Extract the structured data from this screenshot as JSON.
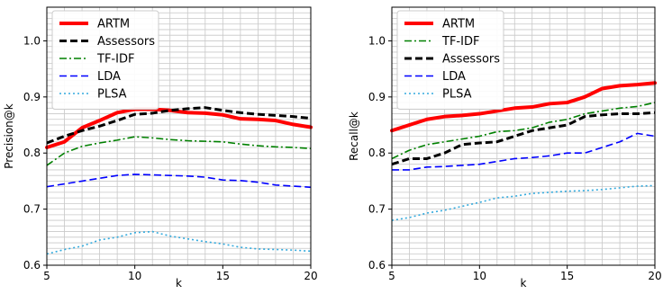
{
  "chart_data": [
    {
      "type": "line",
      "xlabel": "k",
      "ylabel": "Precision@k",
      "xlim": [
        5,
        20
      ],
      "ylim": [
        0.6,
        1.06
      ],
      "xticks": [
        5,
        10,
        15,
        20
      ],
      "yticks": [
        0.6,
        0.7,
        0.8,
        0.9,
        1.0
      ],
      "xtick_labels": [
        "5",
        "10",
        "15",
        "20"
      ],
      "ytick_labels": [
        "0.6",
        "0.7",
        "0.8",
        "0.9",
        "1.0"
      ],
      "grid": true,
      "legend_position": "top-left",
      "x": [
        5,
        6,
        7,
        8,
        9,
        10,
        11,
        12,
        13,
        14,
        15,
        16,
        17,
        18,
        19,
        20
      ],
      "series": [
        {
          "name": "ARTM",
          "color": "#ff0000",
          "style": "solid",
          "width": 4,
          "values": [
            0.81,
            0.82,
            0.845,
            0.858,
            0.872,
            0.878,
            0.878,
            0.876,
            0.872,
            0.871,
            0.868,
            0.861,
            0.86,
            0.858,
            0.851,
            0.846
          ]
        },
        {
          "name": "Assessors",
          "color": "#000000",
          "style": "dashed",
          "width": 3,
          "values": [
            0.818,
            0.83,
            0.84,
            0.848,
            0.858,
            0.869,
            0.871,
            0.876,
            0.879,
            0.881,
            0.876,
            0.872,
            0.869,
            0.867,
            0.865,
            0.862
          ]
        },
        {
          "name": "TF-IDF",
          "color": "#008000",
          "style": "dashdot",
          "width": 1.6,
          "values": [
            0.778,
            0.8,
            0.812,
            0.818,
            0.823,
            0.829,
            0.827,
            0.824,
            0.822,
            0.821,
            0.82,
            0.816,
            0.813,
            0.811,
            0.81,
            0.808
          ]
        },
        {
          "name": "LDA",
          "color": "#0000ff",
          "style": "dashed",
          "width": 1.6,
          "values": [
            0.74,
            0.745,
            0.75,
            0.755,
            0.76,
            0.762,
            0.761,
            0.76,
            0.759,
            0.757,
            0.752,
            0.751,
            0.748,
            0.743,
            0.741,
            0.739
          ]
        },
        {
          "name": "PLSA",
          "color": "#33aadd",
          "style": "dotted",
          "width": 1.6,
          "values": [
            0.62,
            0.628,
            0.634,
            0.645,
            0.65,
            0.658,
            0.66,
            0.652,
            0.647,
            0.642,
            0.638,
            0.632,
            0.629,
            0.628,
            0.627,
            0.625
          ]
        }
      ]
    },
    {
      "type": "line",
      "xlabel": "k",
      "ylabel": "Recall@k",
      "xlim": [
        5,
        20
      ],
      "ylim": [
        0.6,
        1.06
      ],
      "xticks": [
        5,
        10,
        15,
        20
      ],
      "yticks": [
        0.6,
        0.7,
        0.8,
        0.9,
        1.0
      ],
      "xtick_labels": [
        "5",
        "10",
        "15",
        "20"
      ],
      "ytick_labels": [
        "0.6",
        "0.7",
        "0.8",
        "0.9",
        "1.0"
      ],
      "grid": true,
      "legend_position": "top-left",
      "x": [
        5,
        6,
        7,
        8,
        9,
        10,
        11,
        12,
        13,
        14,
        15,
        16,
        17,
        18,
        19,
        20
      ],
      "series": [
        {
          "name": "ARTM",
          "color": "#ff0000",
          "style": "solid",
          "width": 4,
          "values": [
            0.84,
            0.85,
            0.86,
            0.865,
            0.867,
            0.87,
            0.875,
            0.88,
            0.882,
            0.888,
            0.89,
            0.9,
            0.915,
            0.92,
            0.922,
            0.925
          ]
        },
        {
          "name": "TF-IDF",
          "color": "#008000",
          "style": "dashdot",
          "width": 1.6,
          "values": [
            0.79,
            0.805,
            0.815,
            0.82,
            0.825,
            0.83,
            0.838,
            0.84,
            0.845,
            0.855,
            0.86,
            0.87,
            0.875,
            0.88,
            0.883,
            0.89
          ]
        },
        {
          "name": "Assessors",
          "color": "#000000",
          "style": "dashed",
          "width": 3,
          "values": [
            0.78,
            0.79,
            0.79,
            0.8,
            0.815,
            0.818,
            0.82,
            0.83,
            0.84,
            0.845,
            0.85,
            0.865,
            0.868,
            0.87,
            0.87,
            0.872
          ]
        },
        {
          "name": "LDA",
          "color": "#0000ff",
          "style": "dashed",
          "width": 1.6,
          "values": [
            0.77,
            0.77,
            0.775,
            0.776,
            0.778,
            0.78,
            0.785,
            0.79,
            0.792,
            0.795,
            0.8,
            0.8,
            0.81,
            0.82,
            0.835,
            0.83
          ]
        },
        {
          "name": "PLSA",
          "color": "#33aadd",
          "style": "dotted",
          "width": 1.6,
          "values": [
            0.68,
            0.685,
            0.693,
            0.698,
            0.705,
            0.712,
            0.72,
            0.723,
            0.728,
            0.73,
            0.732,
            0.733,
            0.735,
            0.738,
            0.741,
            0.742
          ]
        }
      ]
    }
  ]
}
